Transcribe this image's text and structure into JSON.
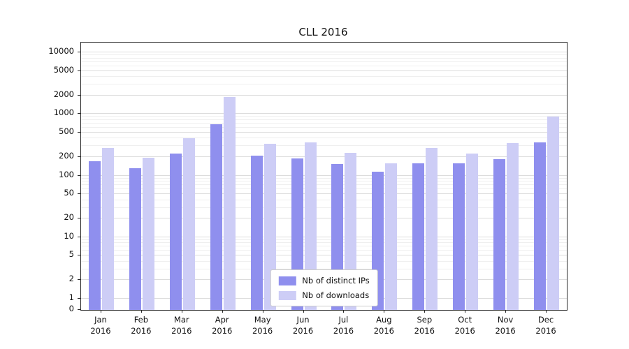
{
  "chart_data": {
    "type": "bar",
    "title": "CLL 2016",
    "categories": [
      "Jan 2016",
      "Feb 2016",
      "Mar 2016",
      "Apr 2016",
      "May 2016",
      "Jun 2016",
      "Jul 2016",
      "Aug 2016",
      "Sep 2016",
      "Oct 2016",
      "Nov 2016",
      "Dec 2016"
    ],
    "series": [
      {
        "name": "Nb of distinct IPs",
        "key": "distinct-ips",
        "color": "#8f8fee",
        "values": [
          170,
          130,
          230,
          680,
          210,
          190,
          155,
          115,
          160,
          160,
          185,
          350
        ]
      },
      {
        "name": "Nb of downloads",
        "key": "downloads",
        "color": "#cdcdf6",
        "values": [
          280,
          195,
          400,
          1900,
          330,
          350,
          235,
          160,
          280,
          225,
          340,
          900
        ]
      }
    ],
    "yticks": [
      0,
      1,
      2,
      5,
      10,
      20,
      50,
      100,
      200,
      500,
      1000,
      2000,
      5000,
      10000
    ],
    "y_scale": "log",
    "ylim": [
      0,
      10000
    ],
    "grid": true,
    "legend_position": "lower center",
    "grid_major_color": "#dcdcdc",
    "grid_minor_color": "#efefef"
  }
}
